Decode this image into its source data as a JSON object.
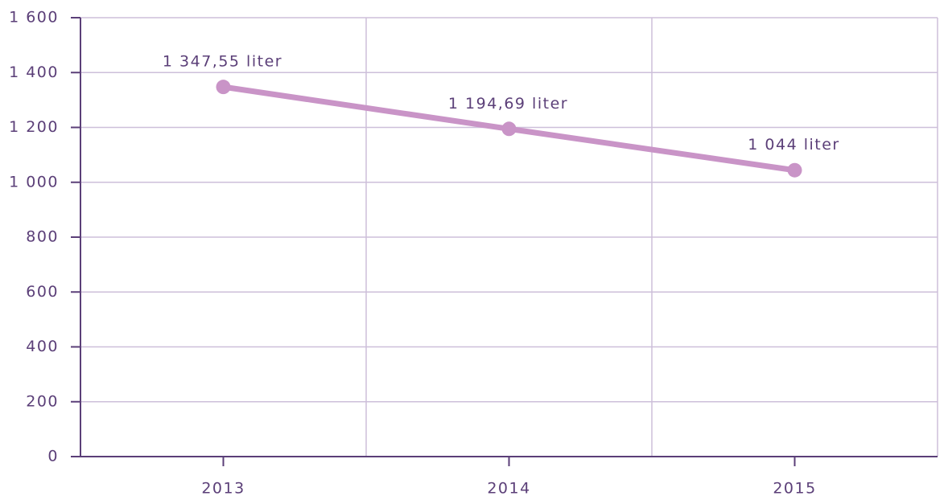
{
  "chart_data": {
    "type": "line",
    "categories": [
      "2013",
      "2014",
      "2015"
    ],
    "series": [
      {
        "color": "#c994c7",
        "values": [
          1347.55,
          1194.69,
          1044
        ],
        "value_labels": [
          "1 347,55 liter",
          "1 194,69 liter",
          "1 044 liter"
        ]
      }
    ],
    "ylim": [
      0,
      1600
    ],
    "yticks": [
      0,
      {
        "value": 200,
        "label": "200"
      },
      {
        "value": 400,
        "label": "400"
      },
      {
        "value": 600,
        "label": "600"
      },
      {
        "value": 800,
        "label": "800"
      },
      {
        "value": 1000,
        "label": "1 000"
      },
      {
        "value": 1200,
        "label": "1 200"
      },
      {
        "value": 1400,
        "label": "1 400"
      },
      {
        "value": 1600,
        "label": "1 600"
      }
    ],
    "grid": true
  }
}
